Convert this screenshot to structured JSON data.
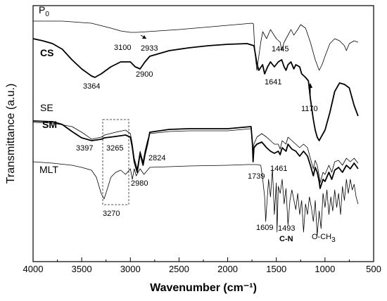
{
  "chart_data": {
    "type": "line",
    "title": "",
    "xlabel": "Wavenumber (cm⁻¹)",
    "ylabel": "Transmittance (a.u.)",
    "xlim": [
      4000,
      500
    ],
    "x_reversed": true,
    "x_ticks": [
      4000,
      3500,
      3000,
      2500,
      2000,
      1500,
      1000,
      500
    ],
    "y_ticks": "none",
    "grid": false,
    "legend": "none",
    "series": [
      {
        "name": "P0",
        "style": "thin",
        "points": [
          [
            4000,
            30
          ],
          [
            3700,
            30
          ],
          [
            3400,
            33
          ],
          [
            3200,
            40
          ],
          [
            3100,
            44
          ],
          [
            3000,
            46
          ],
          [
            2933,
            46
          ],
          [
            2500,
            42
          ],
          [
            2000,
            36
          ],
          [
            1750,
            33
          ],
          [
            1735,
            34
          ],
          [
            1720,
            75
          ],
          [
            1700,
            100
          ],
          [
            1660,
            60
          ],
          [
            1640,
            45
          ],
          [
            1600,
            55
          ],
          [
            1560,
            42
          ],
          [
            1500,
            55
          ],
          [
            1460,
            60
          ],
          [
            1445,
            72
          ],
          [
            1420,
            60
          ],
          [
            1380,
            50
          ],
          [
            1350,
            42
          ],
          [
            1320,
            50
          ],
          [
            1280,
            42
          ],
          [
            1250,
            35
          ],
          [
            1200,
            40
          ],
          [
            1150,
            60
          ],
          [
            1100,
            85
          ],
          [
            1060,
            100
          ],
          [
            1030,
            92
          ],
          [
            1000,
            80
          ],
          [
            950,
            62
          ],
          [
            900,
            55
          ],
          [
            850,
            58
          ],
          [
            800,
            65
          ],
          [
            780,
            72
          ],
          [
            750,
            62
          ],
          [
            700,
            58
          ],
          [
            660,
            60
          ]
        ]
      },
      {
        "name": "CS",
        "style": "thick",
        "points": [
          [
            4000,
            55
          ],
          [
            3900,
            58
          ],
          [
            3800,
            62
          ],
          [
            3700,
            70
          ],
          [
            3600,
            85
          ],
          [
            3500,
            98
          ],
          [
            3400,
            108
          ],
          [
            3364,
            110
          ],
          [
            3300,
            105
          ],
          [
            3200,
            95
          ],
          [
            3100,
            88
          ],
          [
            3000,
            88
          ],
          [
            2950,
            95
          ],
          [
            2900,
            98
          ],
          [
            2850,
            88
          ],
          [
            2800,
            80
          ],
          [
            2600,
            72
          ],
          [
            2400,
            68
          ],
          [
            2200,
            65
          ],
          [
            2000,
            63
          ],
          [
            1800,
            62
          ],
          [
            1730,
            65
          ],
          [
            1700,
            90
          ],
          [
            1680,
            100
          ],
          [
            1641,
            92
          ],
          [
            1620,
            105
          ],
          [
            1590,
            95
          ],
          [
            1560,
            88
          ],
          [
            1520,
            95
          ],
          [
            1480,
            88
          ],
          [
            1445,
            85
          ],
          [
            1420,
            95
          ],
          [
            1400,
            100
          ],
          [
            1380,
            92
          ],
          [
            1350,
            88
          ],
          [
            1320,
            98
          ],
          [
            1300,
            92
          ],
          [
            1260,
            95
          ],
          [
            1240,
            105
          ],
          [
            1200,
            110
          ],
          [
            1170,
            115
          ],
          [
            1150,
            140
          ],
          [
            1120,
            170
          ],
          [
            1100,
            185
          ],
          [
            1080,
            195
          ],
          [
            1060,
            200
          ],
          [
            1040,
            195
          ],
          [
            1020,
            190
          ],
          [
            1000,
            185
          ],
          [
            950,
            160
          ],
          [
            900,
            130
          ],
          [
            850,
            118
          ],
          [
            800,
            120
          ],
          [
            750,
            125
          ],
          [
            700,
            150
          ],
          [
            660,
            165
          ]
        ]
      },
      {
        "name": "SE",
        "style": "thin",
        "points": [
          [
            4000,
            174
          ],
          [
            3800,
            175
          ],
          [
            3600,
            180
          ],
          [
            3500,
            188
          ],
          [
            3397,
            198
          ],
          [
            3300,
            195
          ],
          [
            3265,
            192
          ],
          [
            3150,
            188
          ],
          [
            3050,
            185
          ],
          [
            3000,
            190
          ],
          [
            2980,
            205
          ],
          [
            2960,
            225
          ],
          [
            2930,
            240
          ],
          [
            2900,
            215
          ],
          [
            2870,
            230
          ],
          [
            2850,
            215
          ],
          [
            2824,
            200
          ],
          [
            2800,
            190
          ],
          [
            2600,
            187
          ],
          [
            2400,
            186
          ],
          [
            2000,
            186
          ],
          [
            1760,
            183
          ],
          [
            1745,
            200
          ],
          [
            1739,
            225
          ],
          [
            1730,
            205
          ],
          [
            1700,
            195
          ],
          [
            1650,
            190
          ],
          [
            1600,
            195
          ],
          [
            1560,
            200
          ],
          [
            1520,
            205
          ],
          [
            1480,
            205
          ],
          [
            1461,
            212
          ],
          [
            1440,
            200
          ],
          [
            1400,
            205
          ],
          [
            1380,
            195
          ],
          [
            1340,
            200
          ],
          [
            1300,
            205
          ],
          [
            1260,
            210
          ],
          [
            1220,
            205
          ],
          [
            1180,
            210
          ],
          [
            1150,
            225
          ],
          [
            1120,
            240
          ],
          [
            1100,
            228
          ],
          [
            1080,
            235
          ],
          [
            1060,
            250
          ],
          [
            1050,
            260
          ],
          [
            1020,
            245
          ],
          [
            1000,
            248
          ],
          [
            960,
            235
          ],
          [
            930,
            245
          ],
          [
            900,
            230
          ],
          [
            860,
            228
          ],
          [
            820,
            235
          ],
          [
            780,
            225
          ],
          [
            740,
            230
          ],
          [
            700,
            225
          ],
          [
            660,
            232
          ]
        ]
      },
      {
        "name": "SM",
        "style": "thick",
        "points": [
          [
            4000,
            172
          ],
          [
            3800,
            173
          ],
          [
            3700,
            177
          ],
          [
            3600,
            187
          ],
          [
            3500,
            196
          ],
          [
            3397,
            200
          ],
          [
            3300,
            198
          ],
          [
            3265,
            196
          ],
          [
            3150,
            194
          ],
          [
            3050,
            192
          ],
          [
            3000,
            195
          ],
          [
            2980,
            210
          ],
          [
            2960,
            230
          ],
          [
            2930,
            245
          ],
          [
            2900,
            218
          ],
          [
            2870,
            235
          ],
          [
            2850,
            220
          ],
          [
            2824,
            205
          ],
          [
            2800,
            188
          ],
          [
            2600,
            184
          ],
          [
            2400,
            183
          ],
          [
            2000,
            183
          ],
          [
            1760,
            180
          ],
          [
            1745,
            205
          ],
          [
            1739,
            230
          ],
          [
            1730,
            210
          ],
          [
            1700,
            205
          ],
          [
            1650,
            202
          ],
          [
            1600,
            210
          ],
          [
            1560,
            215
          ],
          [
            1520,
            218
          ],
          [
            1480,
            215
          ],
          [
            1461,
            220
          ],
          [
            1440,
            210
          ],
          [
            1400,
            215
          ],
          [
            1380,
            205
          ],
          [
            1340,
            212
          ],
          [
            1300,
            215
          ],
          [
            1260,
            222
          ],
          [
            1220,
            215
          ],
          [
            1180,
            222
          ],
          [
            1150,
            235
          ],
          [
            1120,
            250
          ],
          [
            1100,
            238
          ],
          [
            1080,
            245
          ],
          [
            1060,
            258
          ],
          [
            1050,
            268
          ],
          [
            1020,
            255
          ],
          [
            1000,
            258
          ],
          [
            960,
            245
          ],
          [
            930,
            255
          ],
          [
            900,
            242
          ],
          [
            860,
            238
          ],
          [
            820,
            245
          ],
          [
            780,
            235
          ],
          [
            740,
            240
          ],
          [
            700,
            232
          ],
          [
            660,
            240
          ]
        ]
      },
      {
        "name": "MLT",
        "style": "thin",
        "points": [
          [
            4000,
            230
          ],
          [
            3800,
            232
          ],
          [
            3600,
            235
          ],
          [
            3500,
            238
          ],
          [
            3400,
            242
          ],
          [
            3350,
            252
          ],
          [
            3300,
            275
          ],
          [
            3270,
            283
          ],
          [
            3240,
            270
          ],
          [
            3200,
            252
          ],
          [
            3150,
            245
          ],
          [
            3100,
            242
          ],
          [
            3050,
            248
          ],
          [
            3000,
            240
          ],
          [
            2980,
            255
          ],
          [
            2960,
            240
          ],
          [
            2940,
            250
          ],
          [
            2900,
            240
          ],
          [
            2860,
            248
          ],
          [
            2800,
            238
          ],
          [
            2600,
            237
          ],
          [
            2400,
            236
          ],
          [
            2000,
            235
          ],
          [
            1800,
            234
          ],
          [
            1700,
            234
          ],
          [
            1660,
            235
          ],
          [
            1640,
            255
          ],
          [
            1620,
            280
          ],
          [
            1609,
            315
          ],
          [
            1600,
            295
          ],
          [
            1580,
            255
          ],
          [
            1560,
            280
          ],
          [
            1540,
            240
          ],
          [
            1520,
            305
          ],
          [
            1500,
            260
          ],
          [
            1493,
            330
          ],
          [
            1480,
            265
          ],
          [
            1460,
            275
          ],
          [
            1440,
            255
          ],
          [
            1420,
            290
          ],
          [
            1400,
            268
          ],
          [
            1380,
            320
          ],
          [
            1360,
            285
          ],
          [
            1340,
            270
          ],
          [
            1300,
            298
          ],
          [
            1280,
            275
          ],
          [
            1260,
            305
          ],
          [
            1240,
            285
          ],
          [
            1220,
            330
          ],
          [
            1200,
            290
          ],
          [
            1180,
            305
          ],
          [
            1160,
            280
          ],
          [
            1140,
            295
          ],
          [
            1120,
            315
          ],
          [
            1100,
            285
          ],
          [
            1080,
            335
          ],
          [
            1060,
            300
          ],
          [
            1040,
            325
          ],
          [
            1020,
            275
          ],
          [
            1000,
            295
          ],
          [
            980,
            270
          ],
          [
            960,
            305
          ],
          [
            940,
            280
          ],
          [
            920,
            300
          ],
          [
            900,
            270
          ],
          [
            880,
            295
          ],
          [
            860,
            275
          ],
          [
            840,
            305
          ],
          [
            820,
            265
          ],
          [
            800,
            285
          ],
          [
            780,
            255
          ],
          [
            760,
            275
          ],
          [
            740,
            255
          ],
          [
            720,
            270
          ],
          [
            700,
            262
          ],
          [
            680,
            280
          ],
          [
            660,
            290
          ]
        ]
      }
    ],
    "annotations": [
      {
        "text": "3100",
        "x": 3100,
        "y": 44
      },
      {
        "text": "2933",
        "x": 2933,
        "y": 46
      },
      {
        "text": "1445",
        "x": 1445,
        "y": 72
      },
      {
        "text": "3364",
        "x": 3364,
        "y": 110
      },
      {
        "text": "2900",
        "x": 2900,
        "y": 98
      },
      {
        "text": "1641",
        "x": 1641,
        "y": 92
      },
      {
        "text": "1170",
        "x": 1170,
        "y": 115
      },
      {
        "text": "3397",
        "x": 3397,
        "y": 200
      },
      {
        "text": "3265",
        "x": 3265,
        "y": 196
      },
      {
        "text": "2824",
        "x": 2824,
        "y": 205
      },
      {
        "text": "2980",
        "x": 2980,
        "y": 245
      },
      {
        "text": "1739",
        "x": 1739,
        "y": 230
      },
      {
        "text": "1461",
        "x": 1461,
        "y": 220
      },
      {
        "text": "3270",
        "x": 3270,
        "y": 283
      },
      {
        "text": "1609",
        "x": 1609,
        "y": 315
      },
      {
        "text": "1493",
        "x": 1493,
        "y": 330
      },
      {
        "text": "C-N",
        "x": 1420,
        "y": 330
      },
      {
        "text": "O-CH3",
        "x": 1100,
        "y": 335
      }
    ],
    "series_labels": [
      "P0",
      "CS",
      "SE",
      "SM",
      "MLT"
    ]
  }
}
